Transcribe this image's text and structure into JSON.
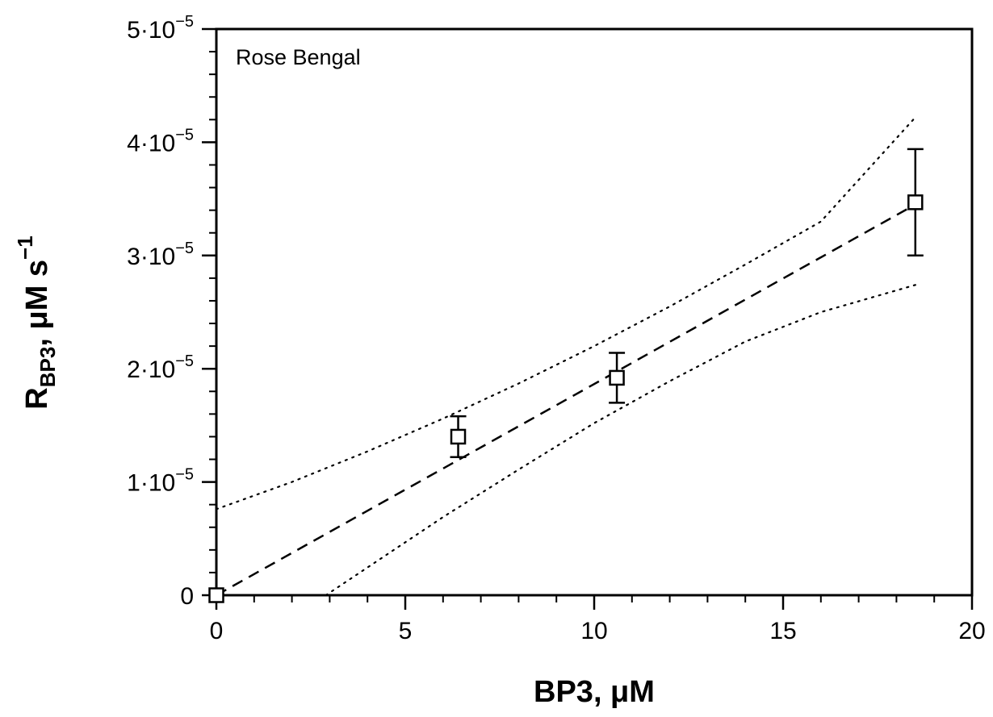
{
  "chart_data": {
    "type": "scatter",
    "annotation": "Rose Bengal",
    "xlabel": "BP3, μM",
    "ylabel_main": "R",
    "ylabel_sub": "BP3",
    "ylabel_rest": ", μM s",
    "ylabel_sup": "−1",
    "xlim": [
      0,
      20
    ],
    "ylim": [
      0,
      5e-05
    ],
    "x_ticks": [
      {
        "value": 0,
        "label": "0"
      },
      {
        "value": 5,
        "label": "5"
      },
      {
        "value": 10,
        "label": "10"
      },
      {
        "value": 15,
        "label": "15"
      },
      {
        "value": 20,
        "label": "20"
      }
    ],
    "y_ticks": [
      {
        "value": 0,
        "mant": "0",
        "exp": ""
      },
      {
        "value": 1e-05,
        "mant": "1·10",
        "exp": "−5"
      },
      {
        "value": 2e-05,
        "mant": "2·10",
        "exp": "−5"
      },
      {
        "value": 3e-05,
        "mant": "3·10",
        "exp": "−5"
      },
      {
        "value": 4e-05,
        "mant": "4·10",
        "exp": "−5"
      },
      {
        "value": 5e-05,
        "mant": "5·10",
        "exp": "−5"
      }
    ],
    "x_minor_step": 1,
    "y_minor_step": 2e-06,
    "points": [
      {
        "x": 0,
        "y": 0,
        "err": 0
      },
      {
        "x": 6.4,
        "y": 1.4e-05,
        "err": 1.8e-06
      },
      {
        "x": 10.6,
        "y": 1.92e-05,
        "err": 2.2e-06
      },
      {
        "x": 18.5,
        "y": 3.47e-05,
        "err": 4.7e-06
      }
    ],
    "fit_line": {
      "style": "dashed",
      "x": [
        0,
        18.5
      ],
      "y": [
        0,
        3.45e-05
      ]
    },
    "confidence_upper": {
      "style": "dotted",
      "x": [
        0,
        2,
        4,
        6,
        8,
        10,
        12,
        14,
        16,
        18.5
      ],
      "y": [
        7.6e-06,
        1e-05,
        1.27e-05,
        1.56e-05,
        1.87e-05,
        2.2e-05,
        2.55e-05,
        2.92e-05,
        3.3e-05,
        4.22e-05
      ]
    },
    "confidence_lower": {
      "style": "dotted",
      "x": [
        2.9,
        6,
        8,
        10,
        12,
        14,
        16,
        18.5
      ],
      "y": [
        0,
        6.9e-06,
        1.11e-05,
        1.52e-05,
        1.89e-05,
        2.24e-05,
        2.5e-05,
        2.74e-05
      ]
    }
  }
}
